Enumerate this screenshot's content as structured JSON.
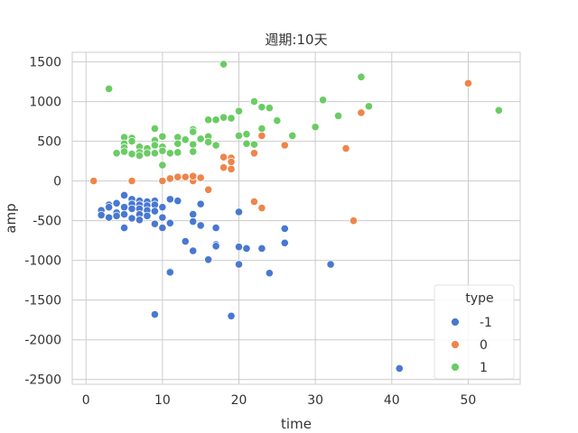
{
  "chart_data": {
    "type": "scatter",
    "title": "週期:10天",
    "xlabel": "time",
    "ylabel": "amp",
    "xlim": [
      -1.8,
      56.8
    ],
    "ylim": [
      -2560,
      1620
    ],
    "xticks": [
      0,
      10,
      20,
      30,
      40,
      50
    ],
    "yticks": [
      1500,
      1000,
      500,
      0,
      -500,
      -1000,
      -1500,
      -2000,
      -2500
    ],
    "grid": true,
    "legend": {
      "title": "type",
      "position": "bottom-right"
    },
    "series": [
      {
        "name": "-1",
        "color": "#4878d0",
        "points": [
          [
            2,
            -370
          ],
          [
            2,
            -430
          ],
          [
            3,
            -300
          ],
          [
            3,
            -330
          ],
          [
            3,
            -460
          ],
          [
            4,
            -280
          ],
          [
            4,
            -400
          ],
          [
            4,
            -440
          ],
          [
            5,
            -180
          ],
          [
            5,
            -330
          ],
          [
            5,
            -420
          ],
          [
            5,
            -590
          ],
          [
            6,
            -230
          ],
          [
            6,
            -290
          ],
          [
            6,
            -350
          ],
          [
            6,
            -470
          ],
          [
            7,
            -250
          ],
          [
            7,
            -300
          ],
          [
            7,
            -350
          ],
          [
            7,
            -420
          ],
          [
            7,
            -490
          ],
          [
            8,
            -260
          ],
          [
            8,
            -310
          ],
          [
            8,
            -370
          ],
          [
            8,
            -440
          ],
          [
            9,
            -250
          ],
          [
            9,
            -300
          ],
          [
            9,
            -380
          ],
          [
            9,
            -540
          ],
          [
            9,
            -1680
          ],
          [
            10,
            -330
          ],
          [
            10,
            -460
          ],
          [
            10,
            -590
          ],
          [
            11,
            -230
          ],
          [
            11,
            -530
          ],
          [
            11,
            -1140
          ],
          [
            11,
            -1150
          ],
          [
            12,
            -250
          ],
          [
            13,
            -760
          ],
          [
            14,
            -420
          ],
          [
            14,
            -510
          ],
          [
            14,
            -880
          ],
          [
            15,
            -290
          ],
          [
            15,
            -560
          ],
          [
            16,
            -990
          ],
          [
            17,
            -800
          ],
          [
            17,
            -820
          ],
          [
            17,
            -590
          ],
          [
            19,
            -1700
          ],
          [
            20,
            -390
          ],
          [
            20,
            -830
          ],
          [
            20,
            -1050
          ],
          [
            21,
            -850
          ],
          [
            23,
            -850
          ],
          [
            24,
            -1160
          ],
          [
            26,
            -600
          ],
          [
            26,
            -780
          ],
          [
            32,
            -1050
          ],
          [
            41,
            -2360
          ]
        ]
      },
      {
        "name": "0",
        "color": "#ee854a",
        "points": [
          [
            1,
            0
          ],
          [
            6,
            0
          ],
          [
            10,
            0
          ],
          [
            11,
            30
          ],
          [
            12,
            50
          ],
          [
            13,
            50
          ],
          [
            14,
            30
          ],
          [
            14,
            0
          ],
          [
            14,
            60
          ],
          [
            15,
            40
          ],
          [
            16,
            -110
          ],
          [
            18,
            300
          ],
          [
            18,
            170
          ],
          [
            19,
            290
          ],
          [
            19,
            240
          ],
          [
            19,
            150
          ],
          [
            22,
            -260
          ],
          [
            22,
            350
          ],
          [
            23,
            570
          ],
          [
            23,
            -340
          ],
          [
            26,
            450
          ],
          [
            34,
            410
          ],
          [
            35,
            -500
          ],
          [
            36,
            860
          ],
          [
            50,
            1230
          ]
        ]
      },
      {
        "name": "1",
        "color": "#6acc64",
        "points": [
          [
            3,
            1160
          ],
          [
            4,
            350
          ],
          [
            5,
            550
          ],
          [
            5,
            470
          ],
          [
            5,
            420
          ],
          [
            5,
            370
          ],
          [
            6,
            540
          ],
          [
            6,
            500
          ],
          [
            6,
            340
          ],
          [
            7,
            430
          ],
          [
            7,
            360
          ],
          [
            7,
            320
          ],
          [
            8,
            410
          ],
          [
            8,
            350
          ],
          [
            9,
            660
          ],
          [
            9,
            510
          ],
          [
            9,
            450
          ],
          [
            9,
            350
          ],
          [
            10,
            560
          ],
          [
            10,
            430
          ],
          [
            10,
            380
          ],
          [
            10,
            200
          ],
          [
            11,
            350
          ],
          [
            12,
            550
          ],
          [
            12,
            470
          ],
          [
            12,
            360
          ],
          [
            13,
            520
          ],
          [
            14,
            650
          ],
          [
            14,
            620
          ],
          [
            14,
            460
          ],
          [
            14,
            370
          ],
          [
            15,
            530
          ],
          [
            16,
            770
          ],
          [
            16,
            560
          ],
          [
            16,
            490
          ],
          [
            17,
            770
          ],
          [
            17,
            450
          ],
          [
            18,
            1470
          ],
          [
            18,
            800
          ],
          [
            19,
            790
          ],
          [
            20,
            880
          ],
          [
            20,
            570
          ],
          [
            21,
            470
          ],
          [
            21,
            590
          ],
          [
            22,
            1000
          ],
          [
            22,
            460
          ],
          [
            23,
            930
          ],
          [
            23,
            660
          ],
          [
            24,
            920
          ],
          [
            25,
            760
          ],
          [
            27,
            570
          ],
          [
            30,
            680
          ],
          [
            31,
            1020
          ],
          [
            33,
            820
          ],
          [
            36,
            1310
          ],
          [
            37,
            940
          ],
          [
            54,
            890
          ]
        ]
      }
    ]
  }
}
